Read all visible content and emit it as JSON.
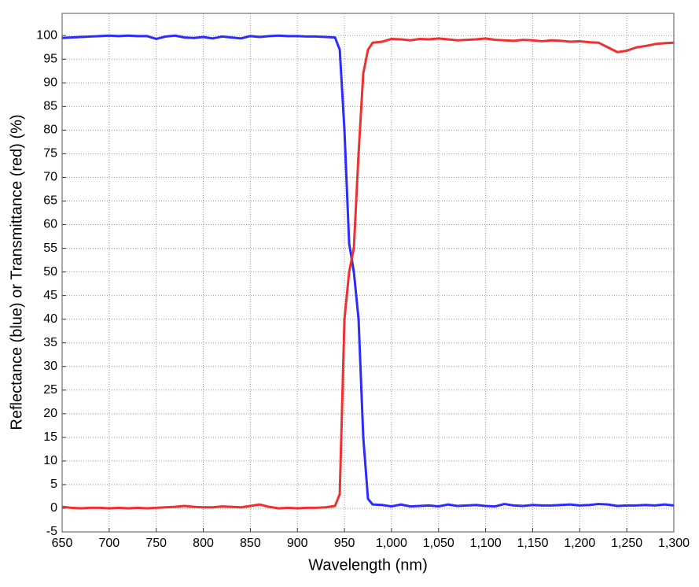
{
  "chart_data": {
    "type": "line",
    "xlabel": "Wavelength (nm)",
    "ylabel": "Reflectance (blue) or Transmittance (red) (%)",
    "x": [
      650,
      660,
      670,
      680,
      690,
      700,
      710,
      720,
      730,
      740,
      750,
      760,
      770,
      780,
      790,
      800,
      810,
      820,
      830,
      840,
      850,
      860,
      870,
      880,
      890,
      900,
      910,
      920,
      930,
      940,
      945,
      950,
      955,
      960,
      965,
      970,
      975,
      980,
      990,
      1000,
      1010,
      1020,
      1030,
      1040,
      1050,
      1060,
      1070,
      1080,
      1090,
      1100,
      1110,
      1120,
      1130,
      1140,
      1150,
      1160,
      1170,
      1180,
      1190,
      1200,
      1210,
      1220,
      1230,
      1240,
      1250,
      1260,
      1270,
      1280,
      1290,
      1300
    ],
    "series": [
      {
        "color": "#2b2bff",
        "values": [
          99.5,
          99.6,
          99.7,
          99.8,
          99.9,
          100,
          99.9,
          100,
          99.9,
          99.9,
          99.3,
          99.8,
          100,
          99.6,
          99.5,
          99.7,
          99.4,
          99.8,
          99.6,
          99.4,
          99.9,
          99.7,
          99.9,
          100,
          99.9,
          99.9,
          99.8,
          99.8,
          99.7,
          99.6,
          97,
          80,
          56,
          50,
          40,
          15,
          2,
          0.8,
          0.7,
          0.4,
          0.8,
          0.4,
          0.5,
          0.6,
          0.4,
          0.8,
          0.5,
          0.6,
          0.7,
          0.5,
          0.4,
          0.9,
          0.6,
          0.5,
          0.7,
          0.6,
          0.6,
          0.7,
          0.8,
          0.6,
          0.7,
          0.9,
          0.8,
          0.5,
          0.6,
          0.6,
          0.7,
          0.6,
          0.8,
          0.6
        ]
      },
      {
        "color": "#f03030",
        "values": [
          0.3,
          0.1,
          0,
          0.1,
          0.1,
          0,
          0.1,
          0,
          0.1,
          0,
          0.1,
          0.2,
          0.3,
          0.5,
          0.3,
          0.2,
          0.2,
          0.4,
          0.3,
          0.2,
          0.5,
          0.8,
          0.3,
          0,
          0.1,
          0,
          0.1,
          0.1,
          0.2,
          0.5,
          3,
          40,
          50,
          55,
          75,
          92,
          97,
          98.5,
          98.7,
          99.3,
          99.2,
          99,
          99.3,
          99.2,
          99.4,
          99.2,
          99,
          99.1,
          99.2,
          99.4,
          99.1,
          99,
          98.9,
          99.1,
          99,
          98.8,
          99,
          98.9,
          98.7,
          98.8,
          98.6,
          98.5,
          97.5,
          96.5,
          96.8,
          97.5,
          97.8,
          98.2,
          98.4,
          98.5
        ]
      }
    ],
    "xlim": [
      650,
      1300
    ],
    "xticks": [
      650,
      700,
      750,
      800,
      850,
      900,
      950,
      {
        "value": 1000,
        "label": "1,000"
      },
      {
        "value": 1050,
        "label": "1,050"
      },
      {
        "value": 1100,
        "label": "1,100"
      },
      {
        "value": 1150,
        "label": "1,150"
      },
      {
        "value": 1200,
        "label": "1,200"
      },
      {
        "value": 1250,
        "label": "1,250"
      },
      {
        "value": 1300,
        "label": "1,300"
      }
    ],
    "ylim": [
      -5,
      104.7
    ],
    "yticks": [
      -5,
      0,
      5,
      10,
      15,
      20,
      25,
      30,
      35,
      40,
      45,
      50,
      55,
      60,
      65,
      70,
      75,
      80,
      85,
      90,
      95,
      100
    ],
    "grid": true
  }
}
